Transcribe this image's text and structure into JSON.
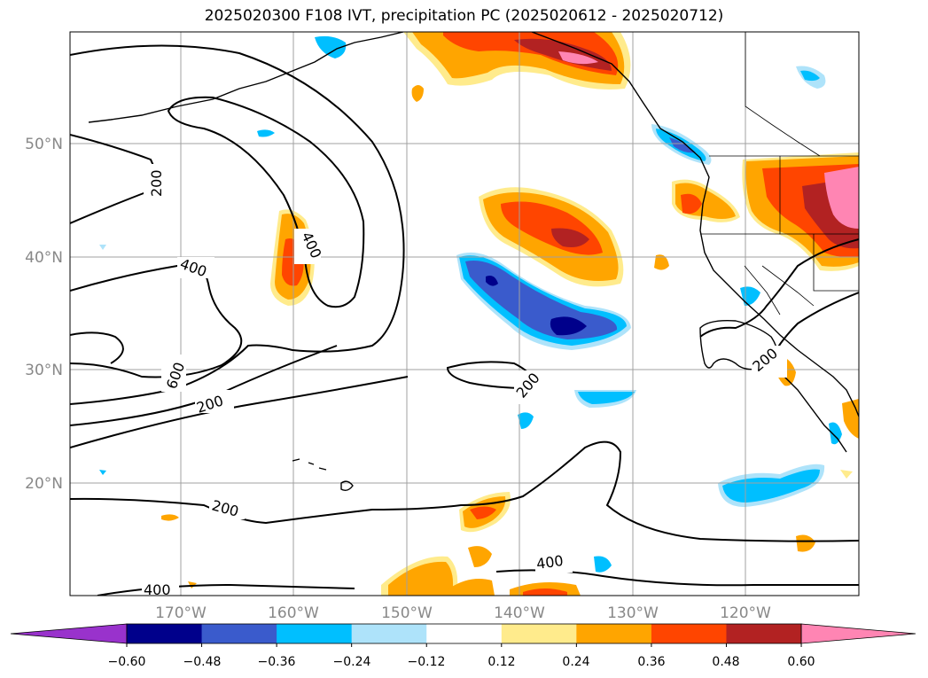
{
  "title": "2025020300 F108 IVT, precipitation PC (2025020612 - 2025020712)",
  "lat_labels": [
    "50°N",
    "40°N",
    "30°N",
    "20°N"
  ],
  "lon_labels": [
    "170°W",
    "160°W",
    "150°W",
    "140°W",
    "130°W",
    "120°W"
  ],
  "contour_labels": [
    "200",
    "400",
    "400",
    "600",
    "200",
    "200",
    "200",
    "200",
    "400",
    "400"
  ],
  "colorbar": {
    "ticks": [
      "−0.60",
      "−0.48",
      "−0.36",
      "−0.24",
      "−0.12",
      "0.12",
      "0.24",
      "0.36",
      "0.48",
      "0.60"
    ],
    "colors": [
      "#9932cc",
      "#00008b",
      "#3a5bcc",
      "#00bfff",
      "#aee3fa",
      "#ffffff",
      "#ffeb8c",
      "#ffa500",
      "#ff4500",
      "#b22222",
      "#ff85b3"
    ]
  }
}
